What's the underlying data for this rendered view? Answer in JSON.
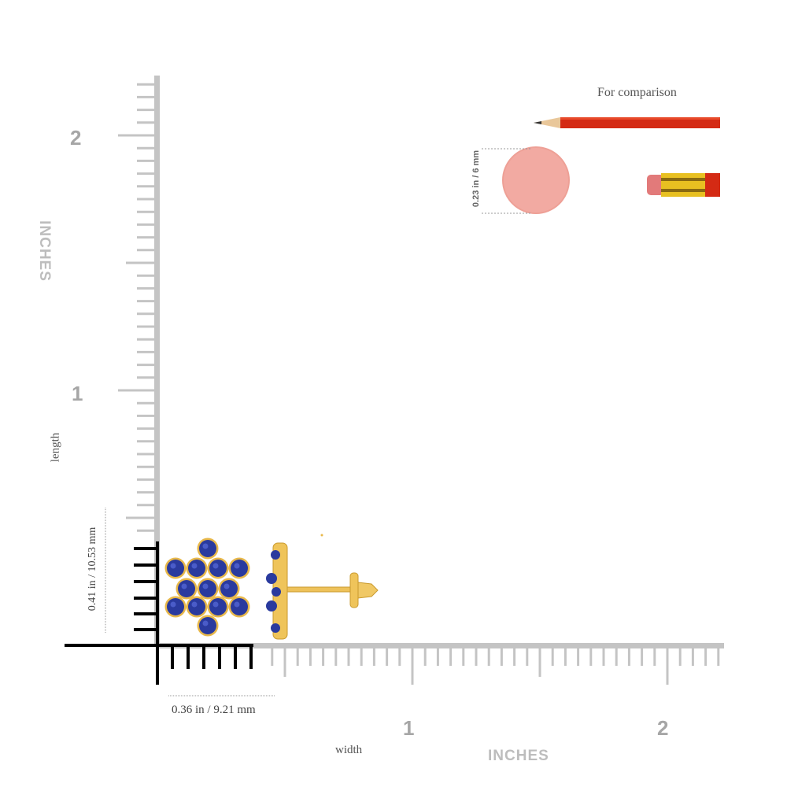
{
  "comparison": {
    "title": "For comparison",
    "eraser_dimension": "0.23 in / 6 mm"
  },
  "vertical_ruler": {
    "unit_label": "INCHES",
    "axis_label": "length",
    "ticks": [
      "2",
      "1"
    ]
  },
  "horizontal_ruler": {
    "unit_label": "INCHES",
    "axis_label": "width",
    "ticks": [
      "1",
      "2"
    ]
  },
  "product": {
    "height_dimension": "0.41 in / 10.53 mm",
    "width_dimension": "0.36 in / 9.21 mm"
  },
  "colors": {
    "ruler_gray": "#c4c4c4",
    "ruler_black": "#000000",
    "gem_blue": "#2a3a9e",
    "gold": "#e8b84a",
    "pencil_red": "#d42a14",
    "eraser_pink": "#f2aaa2"
  }
}
